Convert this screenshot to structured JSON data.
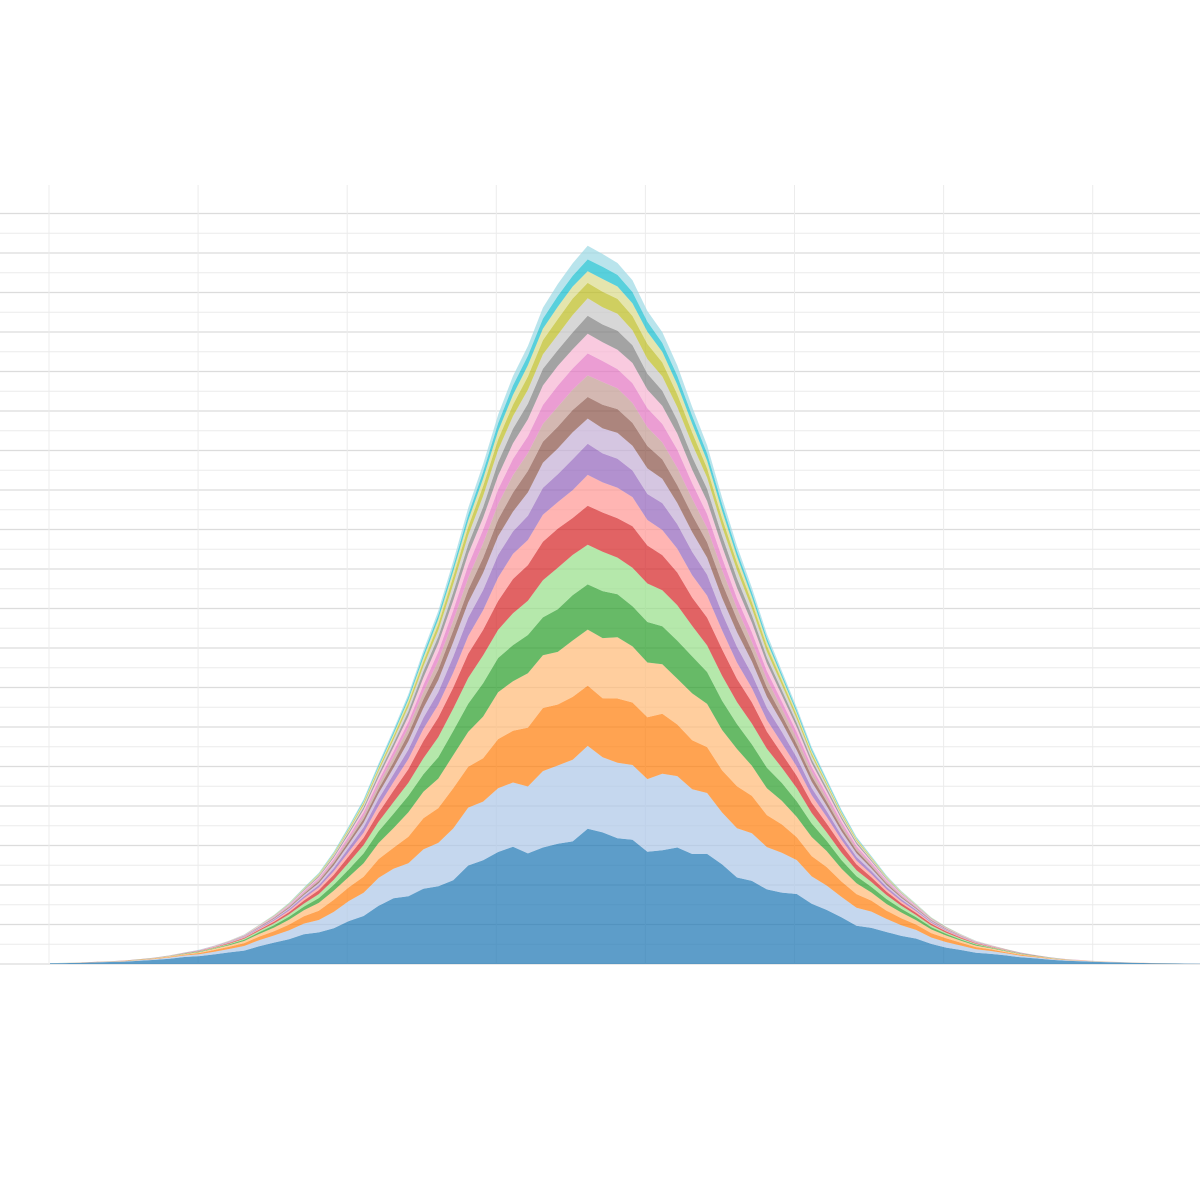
{
  "chart_data": {
    "type": "area",
    "stacked": true,
    "grid": true,
    "legend": "none",
    "title": "",
    "xlabel": "",
    "ylabel": "",
    "xlim": [
      0,
      77
    ],
    "ylim": [
      0,
      7
    ],
    "x": [
      0,
      1,
      2,
      3,
      4,
      5,
      6,
      7,
      8,
      9,
      10,
      11,
      12,
      13,
      14,
      15,
      16,
      17,
      18,
      19,
      20,
      21,
      22,
      23,
      24,
      25,
      26,
      27,
      28,
      29,
      30,
      31,
      32,
      33,
      34,
      35,
      36,
      37,
      38,
      39,
      40,
      41,
      42,
      43,
      44,
      45,
      46,
      47,
      48,
      49,
      50,
      51,
      52,
      53,
      54,
      55,
      56,
      57,
      58,
      59,
      60,
      61,
      62,
      63,
      64,
      65,
      66,
      67,
      68,
      69,
      70,
      71,
      72,
      73,
      74,
      75,
      76,
      77
    ],
    "center": 36.5,
    "series": [
      {
        "color": "#1f77b4",
        "peak": 1.2,
        "width": 11.5
      },
      {
        "color": "#aec7e8",
        "peak": 0.75,
        "width": 10.0
      },
      {
        "color": "#ff7f0e",
        "peak": 0.6,
        "width": 9.6
      },
      {
        "color": "#ffbb78",
        "peak": 0.55,
        "width": 9.3
      },
      {
        "color": "#2ca02c",
        "peak": 0.42,
        "width": 9.0
      },
      {
        "color": "#98df8a",
        "peak": 0.38,
        "width": 8.8
      },
      {
        "color": "#d62728",
        "peak": 0.38,
        "width": 8.7
      },
      {
        "color": "#ff9896",
        "peak": 0.28,
        "width": 8.6
      },
      {
        "color": "#9467bd",
        "peak": 0.28,
        "width": 8.5
      },
      {
        "color": "#c5b0d5",
        "peak": 0.25,
        "width": 8.4
      },
      {
        "color": "#8c564b",
        "peak": 0.22,
        "width": 8.3
      },
      {
        "color": "#c49c94",
        "peak": 0.2,
        "width": 8.2
      },
      {
        "color": "#e377c2",
        "peak": 0.2,
        "width": 8.1
      },
      {
        "color": "#f7b6d2",
        "peak": 0.19,
        "width": 8.0
      },
      {
        "color": "#7f7f7f",
        "peak": 0.17,
        "width": 7.9
      },
      {
        "color": "#c7c7c7",
        "peak": 0.16,
        "width": 7.8
      },
      {
        "color": "#bcbd22",
        "peak": 0.15,
        "width": 7.7
      },
      {
        "color": "#dbdb8d",
        "peak": 0.12,
        "width": 7.6
      },
      {
        "color": "#17becf",
        "peak": 0.11,
        "width": 7.5
      },
      {
        "color": "#9edae5",
        "peak": 0.12,
        "width": 7.4
      }
    ]
  }
}
